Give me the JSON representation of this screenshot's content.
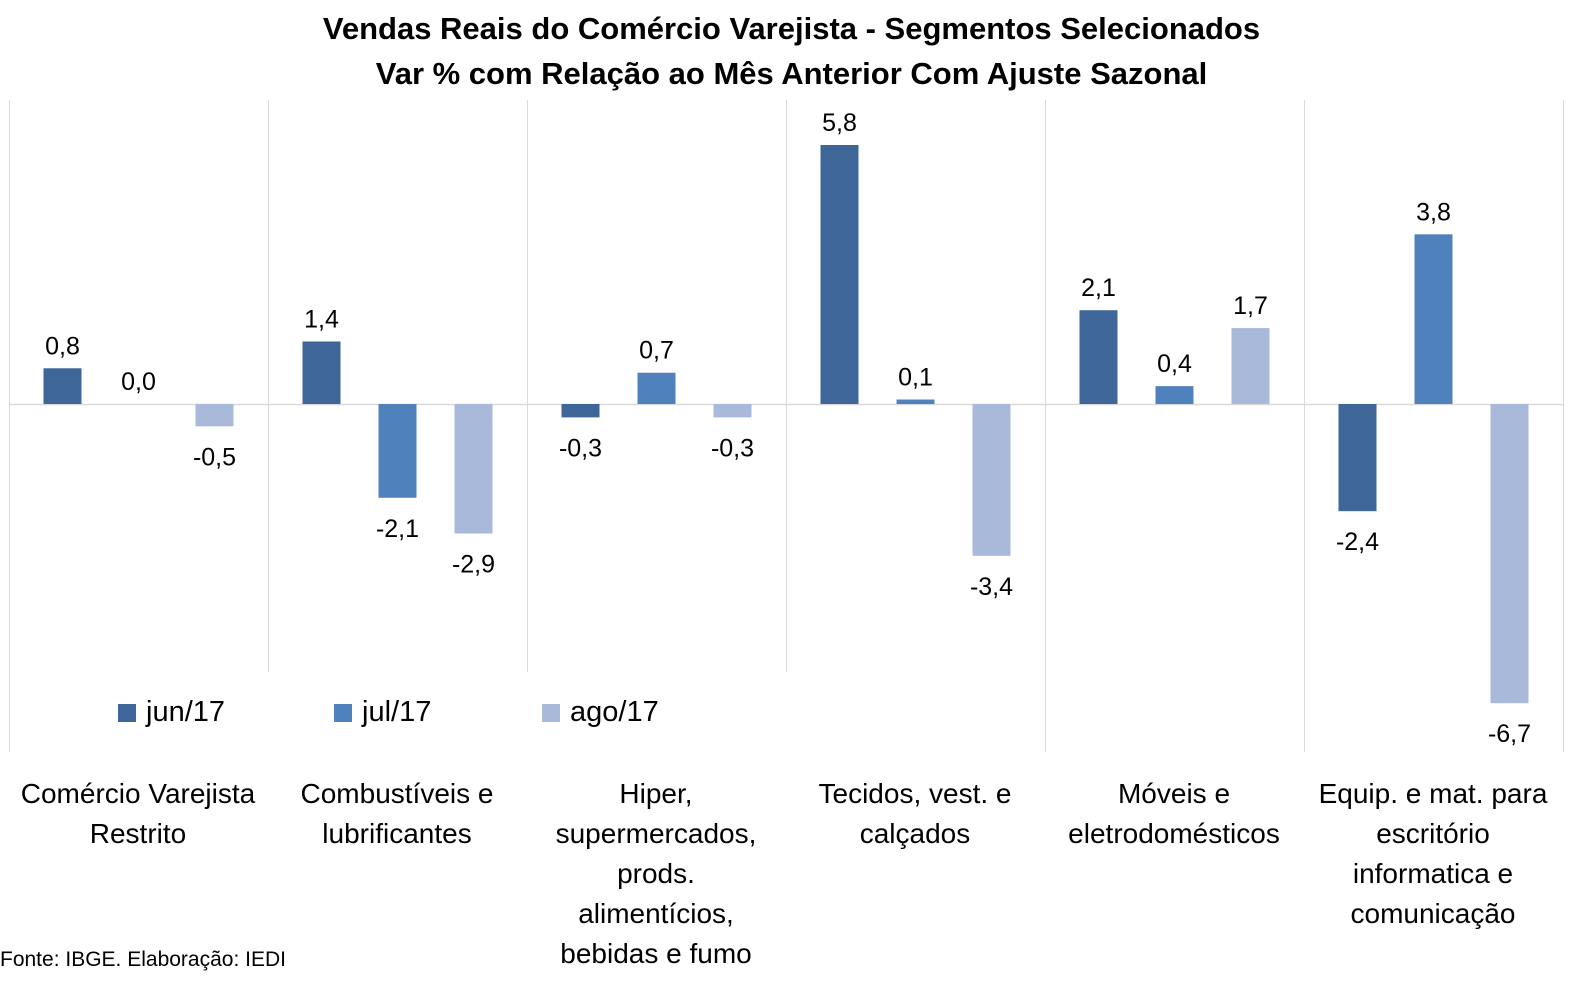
{
  "title": {
    "line1": "Vendas Reais do Comércio Varejista - Segmentos Selecionados",
    "line2": "Var % com Relação ao Mês Anterior Com Ajuste Sazonal"
  },
  "source_note": "Fonte: IBGE. Elaboração: IEDI",
  "colors": {
    "jun17": "#3e6699",
    "jul17": "#4f81bd",
    "ago17": "#a9b9d9",
    "gridline": "#d9d9d9"
  },
  "chart_data": {
    "type": "bar",
    "title": "Vendas Reais do Comércio Varejista - Segmentos Selecionados Var % com Relação ao Mês Anterior Com Ajuste Sazonal",
    "categories": [
      [
        "Comércio Varejista",
        "Restrito"
      ],
      [
        "Combustíveis e",
        "lubrificantes"
      ],
      [
        "Hiper,",
        "supermercados,",
        "prods.",
        "alimentícios,",
        "bebidas e fumo"
      ],
      [
        "Tecidos, vest. e",
        "calçados"
      ],
      [
        "Móveis e",
        "eletrodomésticos"
      ],
      [
        "Equip. e mat. para",
        "escritório",
        "informatica e",
        "comunicação"
      ]
    ],
    "series": [
      {
        "name": "jun/17",
        "values": [
          0.8,
          1.4,
          -0.3,
          5.8,
          2.1,
          -2.4
        ],
        "labels": [
          "0,8",
          "1,4",
          "-0,3",
          "5,8",
          "2,1",
          "-2,4"
        ]
      },
      {
        "name": "jul/17",
        "values": [
          0.0,
          -2.1,
          0.7,
          0.1,
          0.4,
          3.8
        ],
        "labels": [
          "0,0",
          "-2,1",
          "0,7",
          "0,1",
          "0,4",
          "3,8"
        ]
      },
      {
        "name": "ago/17",
        "values": [
          -0.5,
          -2.9,
          -0.3,
          -3.4,
          1.7,
          -6.7
        ],
        "labels": [
          "-0,5",
          "-2,9",
          "-0,3",
          "-3,4",
          "1,7",
          "-6,7"
        ]
      }
    ],
    "ylim": [
      -7.7,
      6.8
    ],
    "legend_position": "bottom-left",
    "grid": "vertical category separators"
  }
}
